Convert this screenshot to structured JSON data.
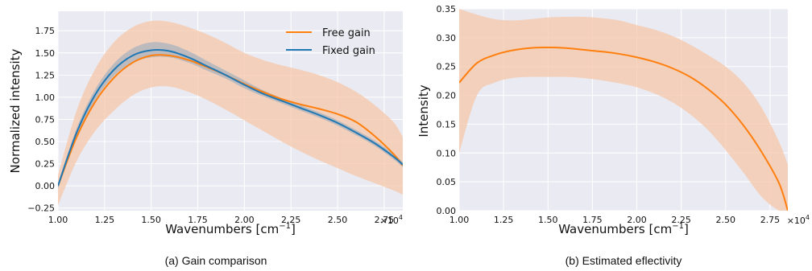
{
  "colors": {
    "plot_bg": "#eaeaf2",
    "grid": "#ffffff",
    "orange": "#ff7f0e",
    "blue": "#1f77b4",
    "orange_band": "#f5c7a8",
    "blue_band": "#8fa8c0"
  },
  "chart_data": [
    {
      "type": "line",
      "caption": "(a) Gain comparison",
      "xlabel": "Wavenumbers [cm",
      "xlabel_sup": "−1",
      "xlabel_end": "]",
      "ylabel": "Normalized intensity",
      "x_multiplier": "×10",
      "x_multiplier_exp": "4",
      "xlim": [
        1.0,
        2.85
      ],
      "ylim": [
        -0.28,
        1.97
      ],
      "xticks": [
        1.0,
        1.25,
        1.5,
        1.75,
        2.0,
        2.25,
        2.5,
        2.75
      ],
      "xtick_labels": [
        "1.00",
        "1.25",
        "1.50",
        "1.75",
        "2.00",
        "2.25",
        "2.50",
        "2.75"
      ],
      "yticks": [
        -0.25,
        0.0,
        0.25,
        0.5,
        0.75,
        1.0,
        1.25,
        1.5,
        1.75
      ],
      "ytick_labels": [
        "−0.25",
        "0.00",
        "0.25",
        "0.50",
        "0.75",
        "1.00",
        "1.25",
        "1.50",
        "1.75"
      ],
      "grid": true,
      "legend_position": "top-right",
      "series": [
        {
          "name": "Free gain",
          "color": "orange",
          "x": [
            1.0,
            1.1,
            1.2,
            1.3,
            1.4,
            1.5,
            1.6,
            1.7,
            1.8,
            1.9,
            2.0,
            2.1,
            2.2,
            2.3,
            2.4,
            2.5,
            2.6,
            2.7,
            2.8,
            2.85
          ],
          "y": [
            0.0,
            0.55,
            0.95,
            1.22,
            1.39,
            1.47,
            1.47,
            1.42,
            1.34,
            1.25,
            1.15,
            1.06,
            0.98,
            0.92,
            0.87,
            0.81,
            0.72,
            0.56,
            0.36,
            0.23
          ],
          "band_low": [
            -0.22,
            0.28,
            0.62,
            0.85,
            1.02,
            1.11,
            1.12,
            1.06,
            0.97,
            0.86,
            0.74,
            0.62,
            0.5,
            0.39,
            0.29,
            0.2,
            0.11,
            0.03,
            -0.05,
            -0.1
          ],
          "band_high": [
            0.12,
            0.85,
            1.32,
            1.62,
            1.79,
            1.86,
            1.85,
            1.79,
            1.71,
            1.61,
            1.5,
            1.42,
            1.36,
            1.31,
            1.25,
            1.17,
            1.06,
            0.91,
            0.72,
            0.55
          ]
        },
        {
          "name": "Fixed gain",
          "color": "blue",
          "x": [
            1.0,
            1.1,
            1.2,
            1.3,
            1.4,
            1.5,
            1.6,
            1.7,
            1.8,
            1.9,
            2.0,
            2.1,
            2.2,
            2.3,
            2.4,
            2.5,
            2.6,
            2.7,
            2.8,
            2.85
          ],
          "y": [
            0.0,
            0.6,
            1.03,
            1.31,
            1.47,
            1.53,
            1.52,
            1.45,
            1.35,
            1.25,
            1.14,
            1.04,
            0.96,
            0.88,
            0.8,
            0.71,
            0.6,
            0.48,
            0.33,
            0.24
          ],
          "band_low": [
            -0.03,
            0.55,
            0.97,
            1.24,
            1.39,
            1.45,
            1.45,
            1.39,
            1.3,
            1.21,
            1.1,
            1.01,
            0.93,
            0.85,
            0.77,
            0.68,
            0.57,
            0.45,
            0.3,
            0.21
          ],
          "band_high": [
            0.03,
            0.65,
            1.09,
            1.38,
            1.55,
            1.62,
            1.6,
            1.52,
            1.41,
            1.3,
            1.19,
            1.08,
            0.99,
            0.91,
            0.83,
            0.74,
            0.63,
            0.51,
            0.36,
            0.27
          ]
        }
      ]
    },
    {
      "type": "line",
      "caption": "(b) Estimated eflectivity",
      "xlabel": "Wavenumbers [cm",
      "xlabel_sup": "−1",
      "xlabel_end": "]",
      "ylabel": "Intensity",
      "x_multiplier": "×10",
      "x_multiplier_exp": "4",
      "xlim": [
        1.0,
        2.85
      ],
      "ylim": [
        0.0,
        0.35
      ],
      "xticks": [
        1.0,
        1.25,
        1.5,
        1.75,
        2.0,
        2.25,
        2.5,
        2.75
      ],
      "xtick_labels": [
        "1.00",
        "1.25",
        "1.50",
        "1.75",
        "2.00",
        "2.25",
        "2.50",
        "2.75"
      ],
      "yticks": [
        0.0,
        0.05,
        0.1,
        0.15,
        0.2,
        0.25,
        0.3,
        0.35
      ],
      "ytick_labels": [
        "0.00",
        "0.05",
        "0.10",
        "0.15",
        "0.20",
        "0.25",
        "0.30",
        "0.35"
      ],
      "grid": true,
      "series": [
        {
          "color": "orange",
          "x": [
            1.0,
            1.1,
            1.2,
            1.3,
            1.4,
            1.5,
            1.6,
            1.7,
            1.8,
            1.9,
            2.0,
            2.1,
            2.2,
            2.3,
            2.4,
            2.5,
            2.6,
            2.7,
            2.8,
            2.85
          ],
          "y": [
            0.222,
            0.256,
            0.27,
            0.278,
            0.282,
            0.283,
            0.282,
            0.279,
            0.276,
            0.272,
            0.266,
            0.258,
            0.247,
            0.232,
            0.211,
            0.184,
            0.148,
            0.103,
            0.048,
            0.0
          ],
          "band_low": [
            0.1,
            0.2,
            0.222,
            0.23,
            0.232,
            0.232,
            0.232,
            0.23,
            0.226,
            0.221,
            0.214,
            0.203,
            0.188,
            0.167,
            0.14,
            0.105,
            0.066,
            0.025,
            0.0,
            0.0
          ],
          "band_high": [
            0.35,
            0.34,
            0.332,
            0.33,
            0.332,
            0.335,
            0.336,
            0.336,
            0.334,
            0.33,
            0.322,
            0.314,
            0.303,
            0.288,
            0.27,
            0.25,
            0.222,
            0.18,
            0.12,
            0.08
          ]
        }
      ]
    }
  ]
}
